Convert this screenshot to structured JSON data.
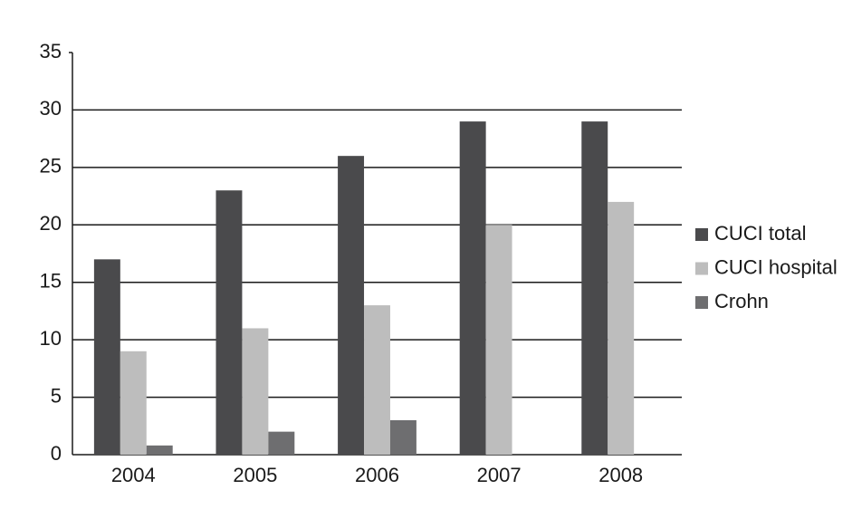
{
  "chart_data": {
    "type": "bar",
    "categories": [
      "2004",
      "2005",
      "2006",
      "2007",
      "2008"
    ],
    "series": [
      {
        "name": "CUCI total",
        "color": "#4a4a4c",
        "values": [
          17,
          23,
          26,
          29,
          29
        ]
      },
      {
        "name": "CUCI hospital",
        "color": "#bdbdbd",
        "values": [
          9,
          11,
          13,
          20,
          22
        ]
      },
      {
        "name": "Crohn",
        "color": "#6e6e70",
        "values": [
          0.8,
          2,
          3,
          null,
          null
        ]
      }
    ],
    "ylim": [
      0,
      35
    ],
    "yticks": [
      0,
      5,
      10,
      15,
      20,
      25,
      30,
      35
    ],
    "grid": true,
    "legend": "right"
  }
}
